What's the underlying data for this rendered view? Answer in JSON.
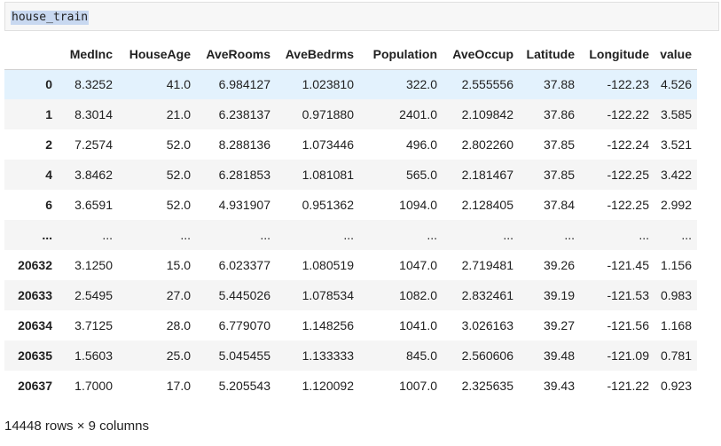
{
  "cell": {
    "code": "house_train"
  },
  "table": {
    "columns": [
      "MedInc",
      "HouseAge",
      "AveRooms",
      "AveBedrms",
      "Population",
      "AveOccup",
      "Latitude",
      "Longitude",
      "value"
    ],
    "rows": [
      {
        "index": "0",
        "cells": [
          "8.3252",
          "41.0",
          "6.984127",
          "1.023810",
          "322.0",
          "2.555556",
          "37.88",
          "-122.23",
          "4.526"
        ]
      },
      {
        "index": "1",
        "cells": [
          "8.3014",
          "21.0",
          "6.238137",
          "0.971880",
          "2401.0",
          "2.109842",
          "37.86",
          "-122.22",
          "3.585"
        ]
      },
      {
        "index": "2",
        "cells": [
          "7.2574",
          "52.0",
          "8.288136",
          "1.073446",
          "496.0",
          "2.802260",
          "37.85",
          "-122.24",
          "3.521"
        ]
      },
      {
        "index": "4",
        "cells": [
          "3.8462",
          "52.0",
          "6.281853",
          "1.081081",
          "565.0",
          "2.181467",
          "37.85",
          "-122.25",
          "3.422"
        ]
      },
      {
        "index": "6",
        "cells": [
          "3.6591",
          "52.0",
          "4.931907",
          "0.951362",
          "1094.0",
          "2.128405",
          "37.84",
          "-122.25",
          "2.992"
        ]
      },
      {
        "index": "...",
        "cells": [
          "...",
          "...",
          "...",
          "...",
          "...",
          "...",
          "...",
          "...",
          "..."
        ]
      },
      {
        "index": "20632",
        "cells": [
          "3.1250",
          "15.0",
          "6.023377",
          "1.080519",
          "1047.0",
          "2.719481",
          "39.26",
          "-121.45",
          "1.156"
        ]
      },
      {
        "index": "20633",
        "cells": [
          "2.5495",
          "27.0",
          "5.445026",
          "1.078534",
          "1082.0",
          "2.832461",
          "39.19",
          "-121.53",
          "0.983"
        ]
      },
      {
        "index": "20634",
        "cells": [
          "3.7125",
          "28.0",
          "6.779070",
          "1.148256",
          "1041.0",
          "3.026163",
          "39.27",
          "-121.56",
          "1.168"
        ]
      },
      {
        "index": "20635",
        "cells": [
          "1.5603",
          "25.0",
          "5.045455",
          "1.133333",
          "845.0",
          "2.560606",
          "39.48",
          "-121.09",
          "0.781"
        ]
      },
      {
        "index": "20637",
        "cells": [
          "1.7000",
          "17.0",
          "5.205543",
          "1.120092",
          "1007.0",
          "2.325635",
          "39.43",
          "-121.22",
          "0.923"
        ]
      }
    ]
  },
  "summary": "14448 rows × 9 columns"
}
